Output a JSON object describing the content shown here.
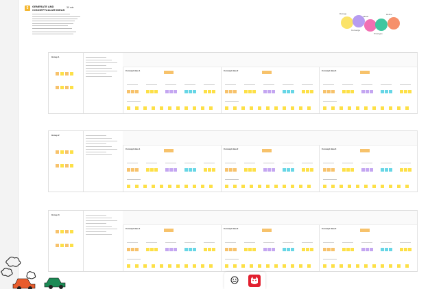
{
  "header": {
    "step_number": "5",
    "title": "GENERATE AND CONCEPTUALIZE IDEAS",
    "timer": "30 min"
  },
  "method_circles": [
    {
      "label": "Diverge",
      "color": "#fbe36a"
    },
    {
      "label": "Converge",
      "color": "#b79cf0"
    },
    {
      "label": "Ideate",
      "color": "#f26fb2"
    },
    {
      "label": "Prototype",
      "color": "#3ec7a0"
    },
    {
      "label": "Refine",
      "color": "#f6906b"
    }
  ],
  "boards": [
    {
      "name": "Group 1",
      "panels": [
        "Concept idea 1",
        "Concept idea 2",
        "Concept idea 3"
      ]
    },
    {
      "name": "Group 2",
      "panels": [
        "Concept idea 1",
        "Concept idea 2",
        "Concept idea 3"
      ]
    },
    {
      "name": "Group 3",
      "panels": [
        "Concept idea 1",
        "Concept idea 2",
        "Concept idea 3"
      ]
    }
  ],
  "dock": {
    "reactions_icon": "smiley-icon",
    "app_icon": "monster-icon"
  },
  "colors": {
    "accent": "#f4b731",
    "sticky_yellow": "#fde047",
    "sticky_purple": "#c4a6f1",
    "sticky_cyan": "#67d6e6"
  }
}
